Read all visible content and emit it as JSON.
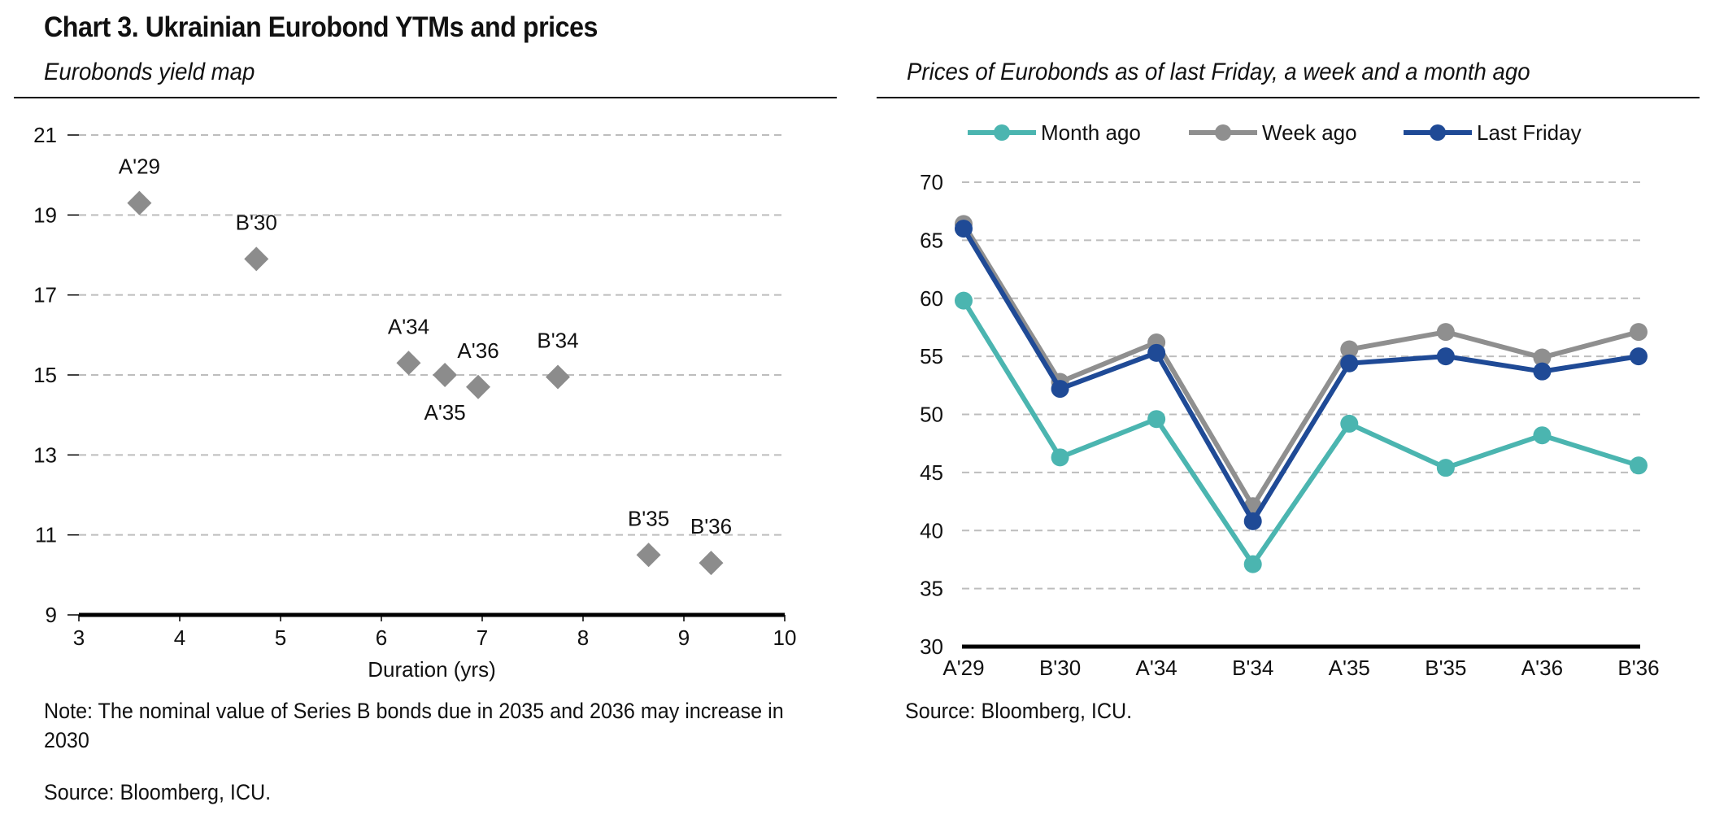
{
  "page": {
    "title": "Chart 3. Ukrainian Eurobond YTMs and prices"
  },
  "left_panel": {
    "subtitle": "Eurobonds yield map",
    "note": "Note: The nominal value of Series B bonds due in 2035 and 2036 may increase in 2030",
    "source": "Source: Bloomberg, ICU."
  },
  "right_panel": {
    "subtitle": "Prices of Eurobonds as of last Friday, a week and a month ago",
    "source": "Source: Bloomberg, ICU."
  },
  "chart_data": [
    {
      "type": "scatter",
      "title": "Eurobonds yield map",
      "xlabel": "Duration (yrs)",
      "ylabel": "",
      "xlim": [
        3,
        10
      ],
      "ylim": [
        9,
        21
      ],
      "xticks": [
        3,
        4,
        5,
        6,
        7,
        8,
        9,
        10
      ],
      "yticks": [
        9,
        11,
        13,
        15,
        17,
        19,
        21
      ],
      "grid": true,
      "marker": "diamond",
      "color": "#8c8c8c",
      "points": [
        {
          "label": "A'29",
          "x": 3.6,
          "y": 19.3,
          "label_pos": "above"
        },
        {
          "label": "B'30",
          "x": 4.76,
          "y": 17.9,
          "label_pos": "above"
        },
        {
          "label": "A'34",
          "x": 6.27,
          "y": 15.3,
          "label_pos": "above"
        },
        {
          "label": "A'35",
          "x": 6.63,
          "y": 15.0,
          "label_pos": "below"
        },
        {
          "label": "A'36",
          "x": 6.96,
          "y": 14.7,
          "label_pos": "above"
        },
        {
          "label": "B'34",
          "x": 7.75,
          "y": 14.95,
          "label_pos": "above"
        },
        {
          "label": "B'35",
          "x": 8.65,
          "y": 10.5,
          "label_pos": "above"
        },
        {
          "label": "B'36",
          "x": 9.27,
          "y": 10.3,
          "label_pos": "above"
        }
      ]
    },
    {
      "type": "line",
      "title": "Prices of Eurobonds as of last Friday, a week and a month ago",
      "xlabel": "",
      "ylabel": "",
      "ylim": [
        30,
        70
      ],
      "yticks": [
        30,
        35,
        40,
        45,
        50,
        55,
        60,
        65,
        70
      ],
      "grid": true,
      "legend_position": "top",
      "categories": [
        "A'29",
        "B'30",
        "A'34",
        "B'34",
        "A'35",
        "B'35",
        "A'36",
        "B'36"
      ],
      "series": [
        {
          "name": "Month ago",
          "color": "#4bb5b0",
          "values": [
            59.8,
            46.3,
            49.6,
            37.1,
            49.2,
            45.4,
            48.2,
            45.6
          ]
        },
        {
          "name": "Week ago",
          "color": "#8f8f8f",
          "values": [
            66.4,
            52.8,
            56.2,
            42.1,
            55.6,
            57.1,
            54.9,
            57.1
          ]
        },
        {
          "name": "Last Friday",
          "color": "#1f4a96",
          "values": [
            66.0,
            52.2,
            55.3,
            40.8,
            54.4,
            55.0,
            53.7,
            55.0
          ]
        }
      ]
    }
  ]
}
